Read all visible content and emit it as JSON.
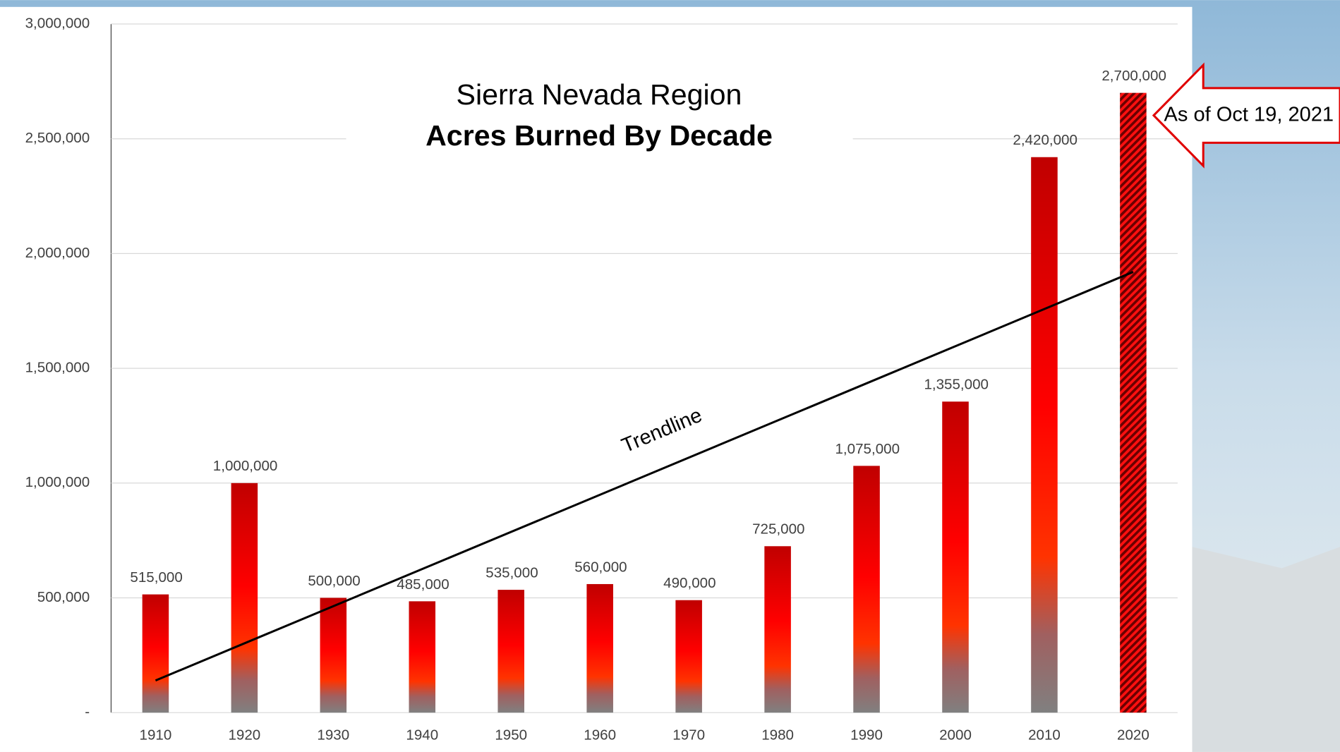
{
  "chart_data": {
    "type": "bar",
    "title": "Sierra Nevada Region",
    "subtitle": "Acres Burned By Decade",
    "categories": [
      "1910",
      "1920",
      "1930",
      "1940",
      "1950",
      "1960",
      "1970",
      "1980",
      "1990",
      "2000",
      "2010",
      "2020"
    ],
    "values": [
      515000,
      1000000,
      500000,
      485000,
      535000,
      560000,
      490000,
      725000,
      1075000,
      1355000,
      2420000,
      2700000
    ],
    "value_labels": [
      "515,000",
      "1,000,000",
      "500,000",
      "485,000",
      "535,000",
      "560,000",
      "490,000",
      "725,000",
      "1,075,000",
      "1,355,000",
      "2,420,000",
      "2,700,000"
    ],
    "hatch": [
      false,
      false,
      false,
      false,
      false,
      false,
      false,
      false,
      false,
      false,
      false,
      true
    ],
    "color": "#e00000",
    "ylim": [
      0,
      3000000
    ],
    "yticks": [
      {
        "value": 0,
        "label": "-"
      },
      {
        "value": 500000,
        "label": "500,000"
      },
      {
        "value": 1000000,
        "label": "1,000,000"
      },
      {
        "value": 1500000,
        "label": "1,500,000"
      },
      {
        "value": 2000000,
        "label": "2,000,000"
      },
      {
        "value": 2500000,
        "label": "2,500,000"
      },
      {
        "value": 3000000,
        "label": "3,000,000"
      }
    ],
    "grid": true,
    "trendline": {
      "label": "Trendline",
      "start": 140000,
      "end": 1920000
    },
    "annotation": "As of Oct 19, 2021"
  }
}
